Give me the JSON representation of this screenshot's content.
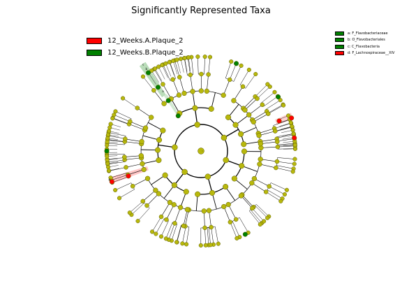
{
  "title": "Significantly Represented Taxa",
  "colors": {
    "node_default": "#b8b80c",
    "node_edge": "#5a5a00",
    "class_a": "#ff0000",
    "class_b": "#008000",
    "clade_b_highlight": "#7fbf7f",
    "clade_a_highlight": "#ff9999"
  },
  "class_legend": [
    {
      "label": "12_Weeks.A.Plaque_2",
      "color": "#ff0000"
    },
    {
      "label": "12_Weeks.B.Plaque_2",
      "color": "#008000"
    }
  ],
  "clade_legend": [
    {
      "label": "a: F_Flavobacteriaceae",
      "color": "#008000"
    },
    {
      "label": "b: O_Flavobacteriales",
      "color": "#008000"
    },
    {
      "label": "c: C_Flavobacteria",
      "color": "#008000"
    },
    {
      "label": "d: F_Lachnospiraceae__XIV",
      "color": "#ff0000"
    }
  ],
  "clade_markers": {
    "green": [
      "a",
      "b",
      "c"
    ],
    "red": [
      "d"
    ]
  }
}
